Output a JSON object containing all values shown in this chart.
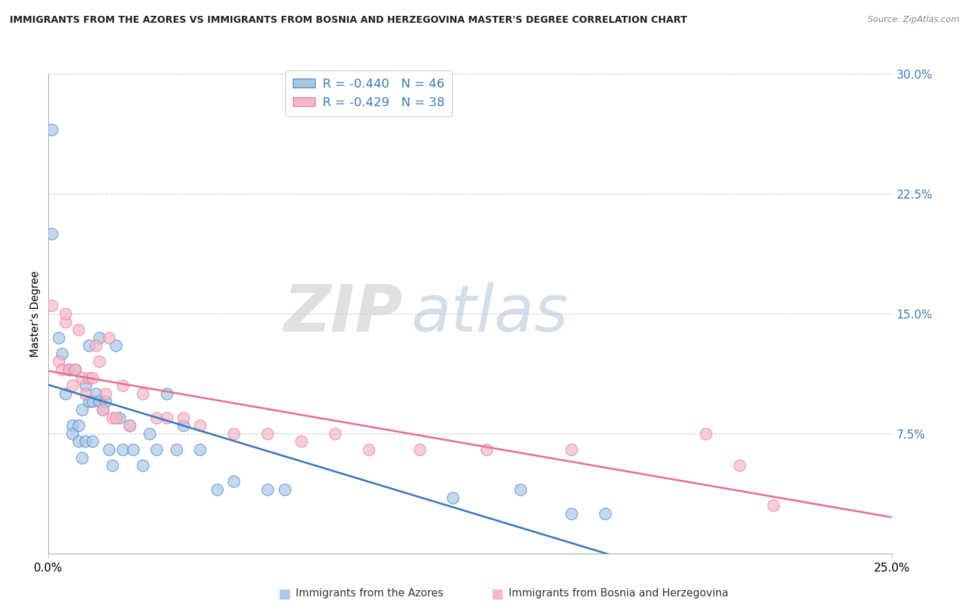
{
  "title": "IMMIGRANTS FROM THE AZORES VS IMMIGRANTS FROM BOSNIA AND HERZEGOVINA MASTER'S DEGREE CORRELATION CHART",
  "source": "Source: ZipAtlas.com",
  "ylabel_left": "Master's Degree",
  "xmin": 0.0,
  "xmax": 0.25,
  "ymin": 0.0,
  "ymax": 0.3,
  "color_blue": "#a8c8e8",
  "color_pink": "#f4b8c8",
  "line_color_blue": "#3a7abf",
  "line_color_pink": "#e87090",
  "legend_r1": "-0.440",
  "legend_n1": "46",
  "legend_r2": "-0.429",
  "legend_n2": "38",
  "bottom_label_1": "Immigrants from the Azores",
  "bottom_label_2": "Immigrants from Bosnia and Herzegovina",
  "azores_x": [
    0.003,
    0.001,
    0.004,
    0.005,
    0.006,
    0.007,
    0.007,
    0.008,
    0.009,
    0.009,
    0.01,
    0.01,
    0.011,
    0.011,
    0.012,
    0.012,
    0.013,
    0.013,
    0.014,
    0.015,
    0.015,
    0.016,
    0.017,
    0.018,
    0.019,
    0.02,
    0.021,
    0.022,
    0.024,
    0.025,
    0.028,
    0.03,
    0.032,
    0.035,
    0.038,
    0.04,
    0.045,
    0.05,
    0.055,
    0.065,
    0.07,
    0.12,
    0.14,
    0.155,
    0.165,
    0.001
  ],
  "azores_y": [
    0.135,
    0.2,
    0.125,
    0.1,
    0.115,
    0.08,
    0.075,
    0.115,
    0.08,
    0.07,
    0.09,
    0.06,
    0.105,
    0.07,
    0.13,
    0.095,
    0.095,
    0.07,
    0.1,
    0.135,
    0.095,
    0.09,
    0.095,
    0.065,
    0.055,
    0.13,
    0.085,
    0.065,
    0.08,
    0.065,
    0.055,
    0.075,
    0.065,
    0.1,
    0.065,
    0.08,
    0.065,
    0.04,
    0.045,
    0.04,
    0.04,
    0.035,
    0.04,
    0.025,
    0.025,
    0.265
  ],
  "bosnia_x": [
    0.001,
    0.003,
    0.004,
    0.005,
    0.006,
    0.007,
    0.008,
    0.009,
    0.01,
    0.011,
    0.012,
    0.013,
    0.014,
    0.015,
    0.016,
    0.017,
    0.018,
    0.019,
    0.02,
    0.022,
    0.024,
    0.028,
    0.032,
    0.035,
    0.04,
    0.045,
    0.055,
    0.065,
    0.075,
    0.085,
    0.095,
    0.11,
    0.13,
    0.155,
    0.195,
    0.205,
    0.215,
    0.005
  ],
  "bosnia_y": [
    0.155,
    0.12,
    0.115,
    0.145,
    0.115,
    0.105,
    0.115,
    0.14,
    0.11,
    0.1,
    0.11,
    0.11,
    0.13,
    0.12,
    0.09,
    0.1,
    0.135,
    0.085,
    0.085,
    0.105,
    0.08,
    0.1,
    0.085,
    0.085,
    0.085,
    0.08,
    0.075,
    0.075,
    0.07,
    0.075,
    0.065,
    0.065,
    0.065,
    0.065,
    0.075,
    0.055,
    0.03,
    0.15
  ]
}
